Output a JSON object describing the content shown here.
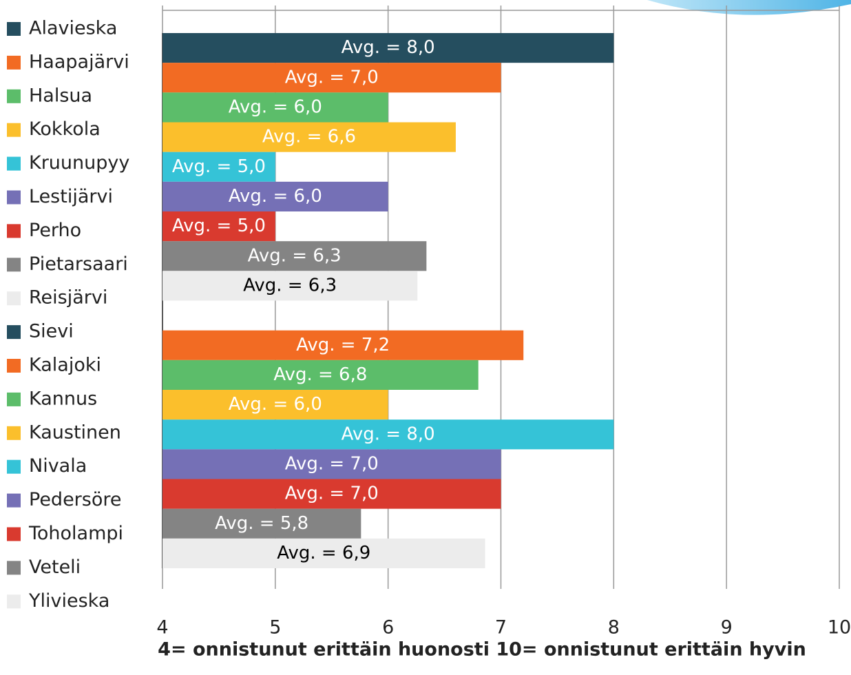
{
  "chart_data": {
    "type": "barh",
    "x_label": "4= onnistunut erittäin huonosti  10= onnistunut erittäin hyvin",
    "categories": [
      "Alavieska",
      "Haapajärvi",
      "Halsua",
      "Kokkola",
      "Kruunupyy",
      "Lestijärvi",
      "Perho",
      "Pietarsaari",
      "Reisjärvi",
      "Sievi",
      "Kalajoki",
      "Kannus",
      "Kaustinen",
      "Nivala",
      "Pedersöre",
      "Toholampi",
      "Veteli",
      "Ylivieska"
    ],
    "values": [
      8.0,
      7.0,
      6.0,
      6.6,
      5.0,
      6.0,
      5.0,
      6.34,
      6.26,
      null,
      7.2,
      6.8,
      6.0,
      8.0,
      7.0,
      7.0,
      5.76,
      6.86
    ],
    "value_labels": [
      "Avg. = 8,0",
      "Avg. = 7,0",
      "Avg. = 6,0",
      "Avg. = 6,6",
      "Avg. = 5,0",
      "Avg. = 6,0",
      "Avg. = 5,0",
      "Avg. = 6,3",
      "Avg. = 6,3",
      null,
      "Avg. = 7,2",
      "Avg. = 6,8",
      "Avg. = 6,0",
      "Avg. = 8,0",
      "Avg. = 7,0",
      "Avg. = 7,0",
      "Avg. = 5,8",
      "Avg. = 6,9"
    ],
    "colors": [
      "#254e5f",
      "#f26b23",
      "#5cbd6a",
      "#fbbf2c",
      "#35c3d7",
      "#7570b6",
      "#d93a2f",
      "#848484",
      "#ececec",
      "#254e5f",
      "#f26b23",
      "#5cbd6a",
      "#fbbf2c",
      "#35c3d7",
      "#7570b6",
      "#d93a2f",
      "#848484",
      "#ececec"
    ],
    "xlim": [
      4,
      10
    ],
    "xticks": [
      4,
      5,
      6,
      7,
      8,
      9,
      10
    ],
    "grid": true
  }
}
